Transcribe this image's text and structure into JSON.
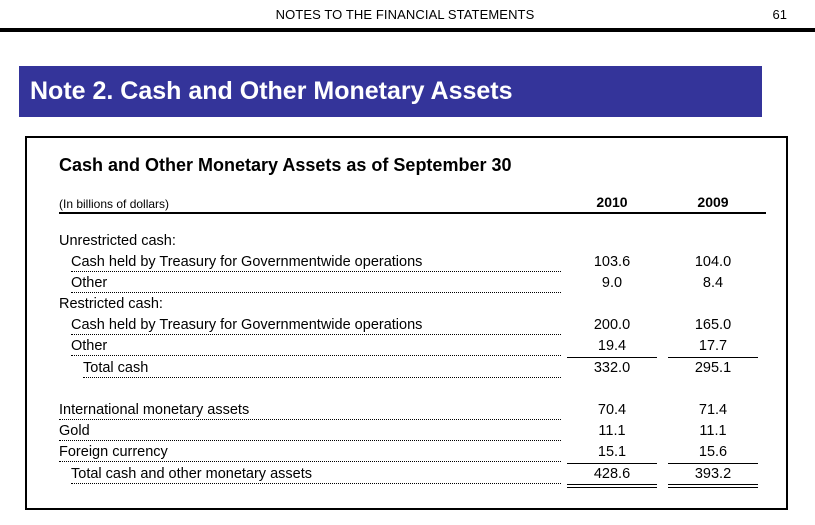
{
  "header": {
    "title": "NOTES TO THE FINANCIAL STATEMENTS",
    "page_number": "61"
  },
  "note": {
    "title": "Note 2. Cash and Other Monetary Assets"
  },
  "table": {
    "title": "Cash and Other Monetary Assets as of September 30",
    "units": "(In billions of dollars)",
    "columns": [
      "2010",
      "2009"
    ],
    "sections": {
      "unrestricted": "Unrestricted cash:",
      "restricted": "Restricted cash:"
    },
    "rows": [
      {
        "label": "Cash held by Treasury for Governmentwide operations",
        "v2010": "103.6",
        "v2009": "104.0"
      },
      {
        "label": "Other",
        "v2010": "9.0",
        "v2009": "8.4"
      },
      {
        "label": "Cash held by Treasury for Governmentwide operations",
        "v2010": "200.0",
        "v2009": "165.0"
      },
      {
        "label": "Other",
        "v2010": "19.4",
        "v2009": "17.7"
      },
      {
        "label": "Total cash",
        "v2010": "332.0",
        "v2009": "295.1"
      },
      {
        "label": "International monetary assets",
        "v2010": "70.4",
        "v2009": "71.4"
      },
      {
        "label": "Gold",
        "v2010": "11.1",
        "v2009": "11.1"
      },
      {
        "label": "Foreign currency",
        "v2010": "15.1",
        "v2009": "15.6"
      },
      {
        "label": "Total cash and other monetary assets",
        "v2010": "428.6",
        "v2009": "393.2"
      }
    ]
  }
}
